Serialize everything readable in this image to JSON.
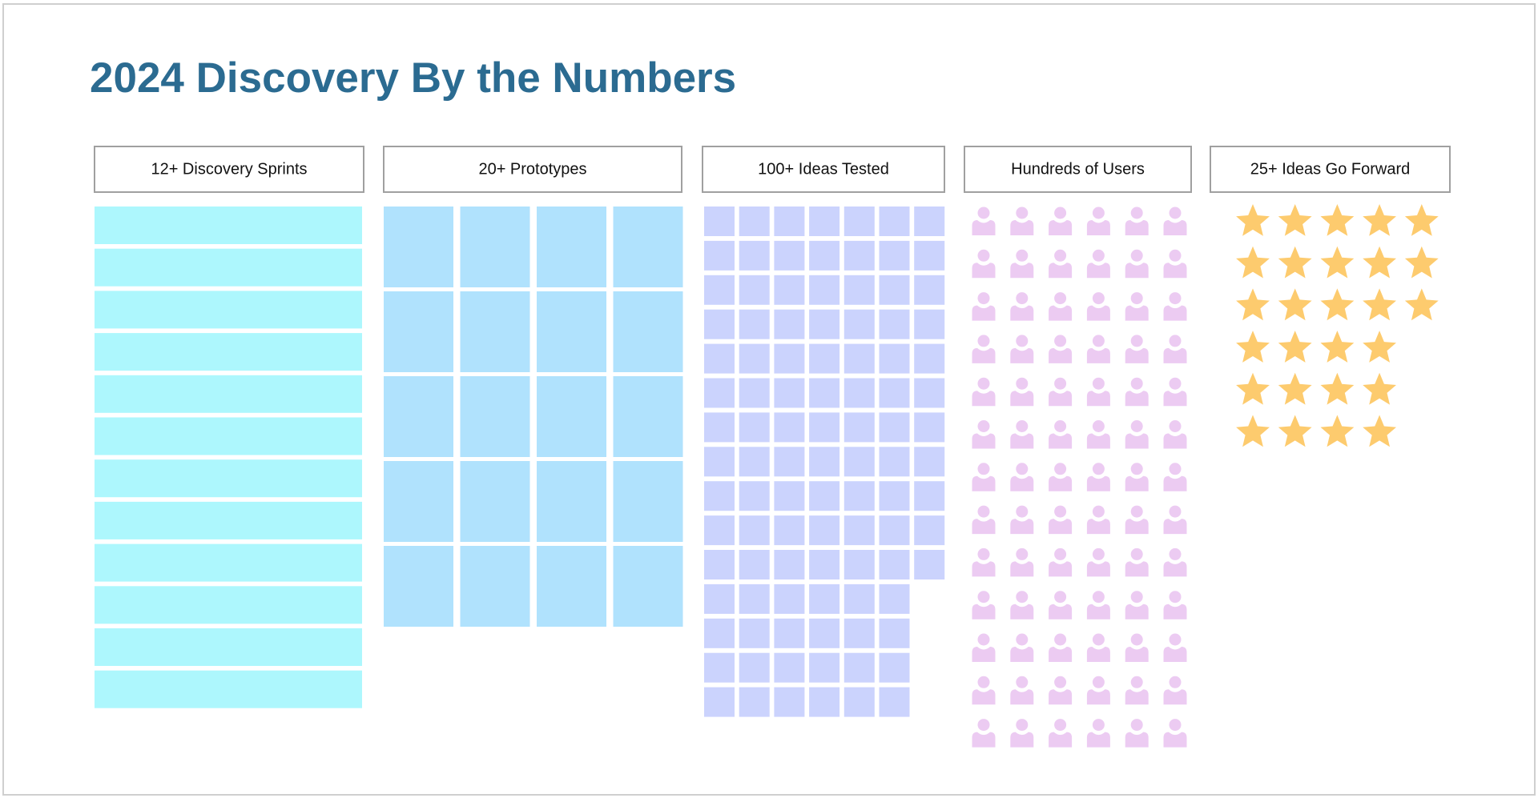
{
  "title": "2024 Discovery By the Numbers",
  "columns": [
    {
      "label": "12+ Discovery Sprints",
      "count": 12,
      "shape": "bar",
      "color": "#adf7fd"
    },
    {
      "label": "20+ Prototypes",
      "count": 20,
      "shape": "tile",
      "color": "#b0e2fd"
    },
    {
      "label": "100+ Ideas Tested",
      "count": 101,
      "shape": "tile",
      "color": "#cbd3fd"
    },
    {
      "label": "Hundreds of Users",
      "count": 78,
      "shape": "user",
      "color": "#eccbf2"
    },
    {
      "label": "25+ Ideas Go Forward",
      "count": 27,
      "shape": "star",
      "color": "#fdcb6e"
    }
  ]
}
